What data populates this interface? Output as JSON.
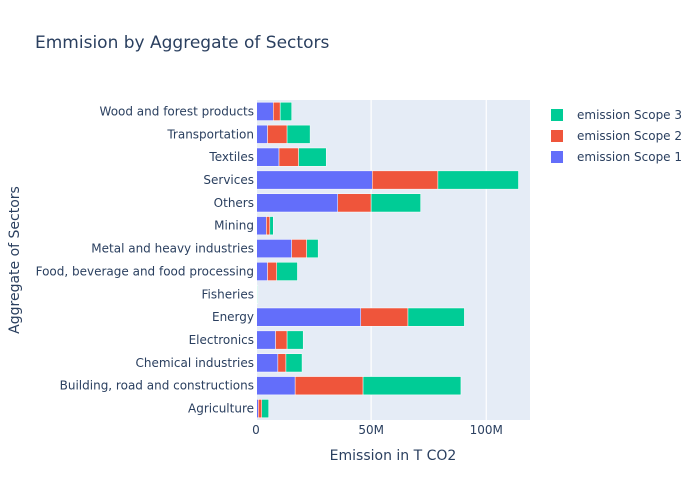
{
  "chart_data": {
    "type": "bar",
    "orientation": "horizontal",
    "barmode": "stack",
    "title": "Emmision by Aggregate of Sectors",
    "xlabel": "Emission in T CO2",
    "ylabel": "Aggregate of Sectors",
    "xlim": [
      0,
      119000000
    ],
    "x_tick_values": [
      0,
      50000000,
      100000000
    ],
    "x_tick_labels": [
      "0",
      "50M",
      "100M"
    ],
    "grid": true,
    "legend_position": "top-right",
    "categories": [
      "Agriculture",
      "Building, road and constructions",
      "Chemical industries",
      "Electronics",
      "Energy",
      "Fisheries",
      "Food, beverage and food processing",
      "Metal and heavy industries",
      "Mining",
      "Others",
      "Services",
      "Textiles",
      "Transportation",
      "Wood and forest products"
    ],
    "series": [
      {
        "name": "emission Scope 1",
        "color": "#636efa",
        "values": [
          1000000,
          17000000,
          9500000,
          8500000,
          45500000,
          500000,
          5000000,
          15500000,
          4500000,
          35500000,
          50500000,
          10000000,
          5000000,
          7500000
        ]
      },
      {
        "name": "emission Scope 2",
        "color": "#ef553b",
        "values": [
          1500000,
          29500000,
          3500000,
          5000000,
          20500000,
          0,
          4000000,
          6500000,
          1500000,
          14500000,
          28500000,
          8500000,
          8500000,
          3000000
        ]
      },
      {
        "name": "emission Scope 3",
        "color": "#00cc96",
        "values": [
          3000000,
          42500000,
          7000000,
          7000000,
          24500000,
          300000,
          9000000,
          5000000,
          1500000,
          21500000,
          35000000,
          12000000,
          10000000,
          5000000
        ]
      }
    ]
  }
}
